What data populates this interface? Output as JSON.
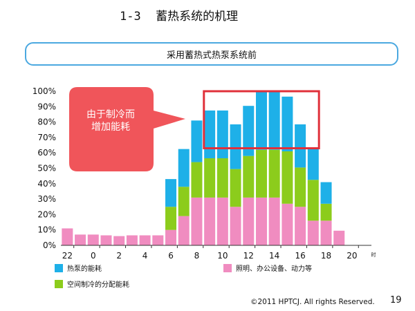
{
  "slide": {
    "number": "1-3",
    "title": "蓄热系统的机理",
    "subtitle": "采用蓄热式热泵系统前",
    "footer": "©2011 HPTCJ. All rights Reserved.",
    "page": "19"
  },
  "chart_data": {
    "type": "bar",
    "stacked": true,
    "y_unit": "%",
    "ylim": [
      0,
      100
    ],
    "y_ticks": [
      "0%",
      "10%",
      "20%",
      "30%",
      "40%",
      "50%",
      "60%",
      "70%",
      "80%",
      "90%",
      "100%"
    ],
    "x_unit_label": "时",
    "x_tick_labels": [
      "22",
      "0",
      "2",
      "4",
      "6",
      "8",
      "10",
      "12",
      "14",
      "16",
      "18",
      "20"
    ],
    "categories": [
      "22",
      "23",
      "0",
      "1",
      "2",
      "3",
      "4",
      "5",
      "6",
      "7",
      "8",
      "9",
      "10",
      "11",
      "12",
      "13",
      "14",
      "15",
      "16",
      "17",
      "18",
      "19",
      "20",
      "21"
    ],
    "series": [
      {
        "name": "照明、办公设备、动力等",
        "color": "#f08cc0",
        "values": [
          11,
          7,
          7,
          6.5,
          6,
          6.5,
          6.5,
          6.5,
          10,
          19,
          31,
          31,
          31,
          25,
          31,
          31,
          31,
          27,
          25,
          16,
          16,
          9.5,
          0,
          0
        ]
      },
      {
        "name": "空间制冷的分配能耗",
        "color": "#8ccc1c",
        "values": [
          0,
          0,
          0,
          0,
          0,
          0,
          0,
          0,
          15,
          19,
          23,
          25.5,
          25.5,
          24.5,
          27,
          31,
          31,
          34,
          25.5,
          26.5,
          11,
          0,
          0,
          0
        ]
      },
      {
        "name": "热泵的能耗",
        "color": "#1eb0e8",
        "values": [
          0,
          0,
          0,
          0,
          0,
          0,
          0,
          0,
          18,
          24.5,
          27,
          31,
          31,
          29,
          32.5,
          37.5,
          37.5,
          35.5,
          28,
          20.5,
          14,
          0,
          0,
          0
        ]
      }
    ],
    "annotation": {
      "text_lines": [
        "由于制冷而",
        "增加能耗"
      ],
      "color": "#f0555a",
      "highlight_range": [
        "9",
        "17"
      ],
      "highlight_ylim": [
        63,
        100
      ]
    },
    "legend": [
      {
        "label": "热泵的能耗",
        "color": "#1eb0e8"
      },
      {
        "label": "照明、办公设备、动力等",
        "color": "#f08cc0"
      },
      {
        "label": "空间制冷的分配能耗",
        "color": "#8ccc1c"
      }
    ]
  }
}
